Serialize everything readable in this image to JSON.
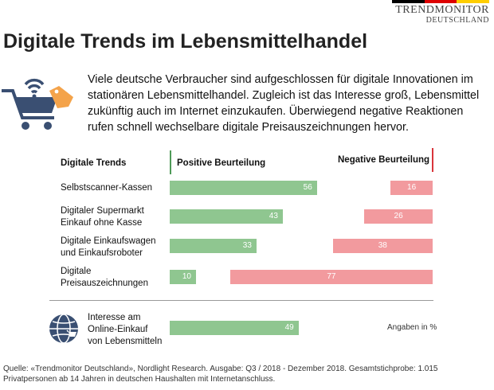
{
  "brand": {
    "line1": "TRENDMONITOR",
    "line2": "DEUTSCHLAND",
    "flag_colors": [
      "#000000",
      "#dd0000",
      "#ffce00"
    ]
  },
  "title": "Digitale Trends im Lebensmittelhandel",
  "intro": "Viele deutsche Verbraucher sind aufgeschlossen für digitale Innovationen im stationären Lebensmittelhandel. Zugleich ist das Interesse groß, Lebensmittel zukünftig auch im Internet einzukaufen. Überwiegend negative Reaktionen rufen schnell wechselbare digitale Preisauszeichnungen hervor.",
  "icons": {
    "cart": "shopping-cart-wifi-tag-icon",
    "globe": "globe-icon"
  },
  "colors": {
    "positive": "#8fc690",
    "negative": "#f29a9e",
    "accent": "#3a4f72"
  },
  "chart_data": {
    "type": "bar",
    "headers": {
      "category": "Digitale Trends",
      "positive": "Positive Beurteilung",
      "negative": "Negative Beurteilung"
    },
    "categories": [
      [
        "Selbstscanner-Kassen"
      ],
      [
        "Digitaler Supermarkt",
        "Einkauf ohne Kasse"
      ],
      [
        "Digitale Einkaufswagen",
        "und Einkaufsroboter"
      ],
      [
        "Digitale",
        "Preisauszeichnungen"
      ]
    ],
    "series": [
      {
        "name": "Positive Beurteilung",
        "values": [
          56,
          43,
          33,
          10
        ]
      },
      {
        "name": "Negative Beurteilung",
        "values": [
          16,
          26,
          38,
          77
        ]
      }
    ],
    "extra": {
      "category": [
        "Interesse am",
        "Online-Einkauf",
        "von Lebensmitteln"
      ],
      "positive": 49
    },
    "unit": "Angaben in %",
    "ylim": [
      0,
      100
    ]
  },
  "source": "Quelle: «Trendmonitor Deutschland», Nordlight Research. Ausgabe: Q3 / 2018 - Dezember 2018. Gesamtstichprobe: 1.015 Privatpersonen ab 14 Jahren in deutschen Haushalten mit Internetanschluss."
}
